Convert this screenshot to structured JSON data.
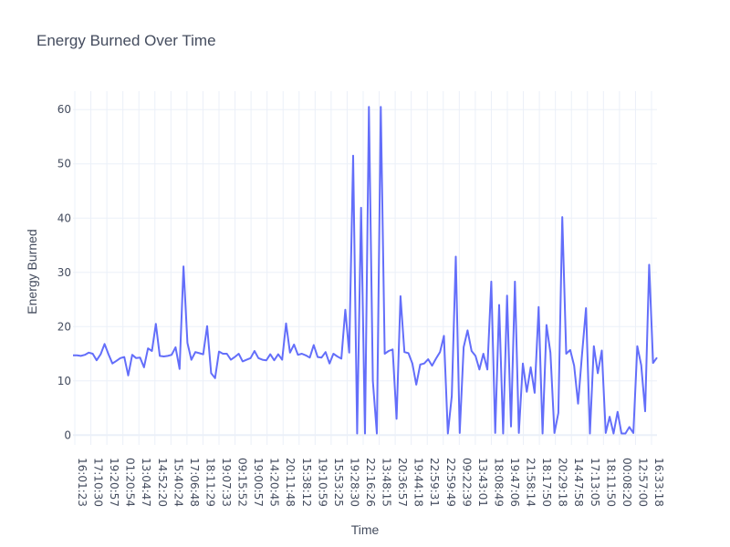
{
  "chart_data": {
    "type": "line",
    "title": "Energy Burned Over Time",
    "xlabel": "Time",
    "ylabel": "Energy Burned",
    "ylim": [
      -1.8,
      63.4
    ],
    "y_ticks": [
      0,
      10,
      20,
      30,
      40,
      50,
      60
    ],
    "x_tick_labels": [
      "16:01:23",
      "17:10:30",
      "19:20:57",
      "01:20:54",
      "13:04:47",
      "14:52:20",
      "15:40:24",
      "17:06:48",
      "18:11:29",
      "19:07:33",
      "09:15:52",
      "19:00:57",
      "14:20:45",
      "20:11:48",
      "15:38:12",
      "19:10:59",
      "15:53:25",
      "19:28:30",
      "22:16:26",
      "13:48:15",
      "20:36:57",
      "19:44:18",
      "22:59:31",
      "22:59:49",
      "09:22:39",
      "13:43:01",
      "18:08:49",
      "19:47:06",
      "21:58:14",
      "18:17:50",
      "20:29:18",
      "14:47:58",
      "17:13:05",
      "18:11:50",
      "00:08:20",
      "12:57:00",
      "16:33:18"
    ],
    "grid": true,
    "legend": "none",
    "series": [
      {
        "color": "#636efa",
        "values": [
          14.7,
          14.7,
          14.6,
          14.8,
          15.2,
          15.0,
          13.8,
          14.9,
          16.8,
          14.9,
          13.2,
          13.7,
          14.2,
          14.4,
          11.0,
          14.8,
          14.2,
          14.3,
          12.5,
          16.0,
          15.5,
          20.5,
          14.6,
          14.5,
          14.6,
          14.8,
          16.2,
          12.2,
          31.1,
          17.0,
          13.9,
          15.3,
          15.1,
          14.9,
          20.1,
          11.4,
          10.5,
          15.4,
          15.0,
          15.0,
          13.9,
          14.4,
          15.0,
          13.6,
          13.9,
          14.2,
          15.5,
          14.2,
          13.9,
          13.8,
          14.9,
          13.8,
          14.9,
          13.9,
          20.6,
          15.2,
          16.7,
          14.8,
          15.0,
          14.7,
          14.3,
          16.6,
          14.4,
          14.3,
          15.3,
          13.2,
          15.0,
          14.5,
          14.1,
          23.1,
          15.2,
          51.5,
          0.3,
          41.9,
          0.3,
          60.5,
          10.0,
          0.3,
          60.5,
          15.0,
          15.5,
          15.8,
          3.0,
          25.6,
          15.3,
          15.1,
          13.2,
          9.3,
          13.0,
          13.2,
          14.0,
          12.8,
          14.1,
          15.3,
          18.3,
          0.3,
          7.2,
          32.9,
          0.4,
          16.2,
          19.3,
          15.5,
          14.6,
          12.1,
          15.0,
          12.1,
          28.3,
          0.4,
          24.0,
          0.3,
          25.7,
          1.6,
          28.3,
          0.4,
          13.2,
          8.0,
          12.5,
          7.8,
          23.6,
          0.3,
          20.3,
          15.2,
          0.4,
          4.1,
          40.2,
          15.0,
          15.7,
          12.8,
          5.8,
          14.8,
          23.4,
          0.3,
          16.4,
          11.4,
          15.6,
          0.4,
          3.4,
          0.3,
          4.3,
          0.3,
          0.3,
          1.5,
          0.4,
          16.4,
          12.9,
          4.4,
          31.4,
          13.3,
          14.3
        ]
      }
    ]
  }
}
